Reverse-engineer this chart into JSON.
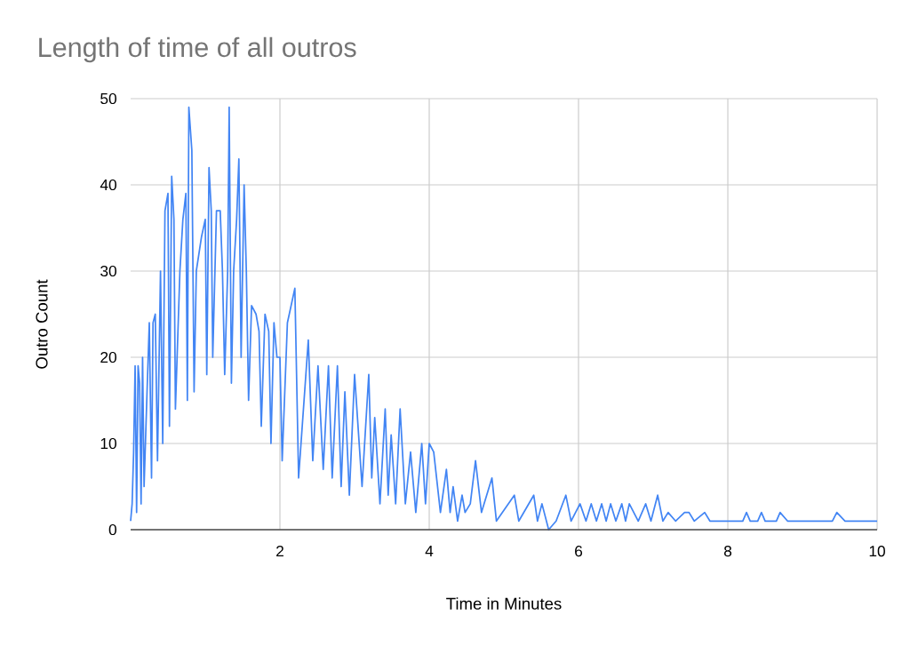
{
  "chart_data": {
    "type": "line",
    "title": "Length of time of all outros",
    "xlabel": "Time in Minutes",
    "ylabel": "Outro Count",
    "x": [
      0,
      0.02,
      0.04,
      0.06,
      0.08,
      0.1,
      0.12,
      0.14,
      0.16,
      0.18,
      0.22,
      0.25,
      0.28,
      0.3,
      0.33,
      0.36,
      0.4,
      0.43,
      0.46,
      0.5,
      0.52,
      0.55,
      0.58,
      0.6,
      0.66,
      0.7,
      0.74,
      0.76,
      0.78,
      0.82,
      0.85,
      0.88,
      0.95,
      1.0,
      1.02,
      1.05,
      1.08,
      1.1,
      1.15,
      1.2,
      1.23,
      1.26,
      1.3,
      1.32,
      1.35,
      1.38,
      1.42,
      1.45,
      1.48,
      1.52,
      1.55,
      1.58,
      1.62,
      1.68,
      1.72,
      1.75,
      1.8,
      1.85,
      1.88,
      1.92,
      1.96,
      2.0,
      2.03,
      2.1,
      2.2,
      2.25,
      2.38,
      2.44,
      2.51,
      2.58,
      2.65,
      2.7,
      2.77,
      2.82,
      2.87,
      2.93,
      3.0,
      3.1,
      3.19,
      3.23,
      3.27,
      3.34,
      3.41,
      3.45,
      3.49,
      3.55,
      3.61,
      3.68,
      3.75,
      3.82,
      3.9,
      3.95,
      4.0,
      4.06,
      4.15,
      4.23,
      4.28,
      4.32,
      4.38,
      4.44,
      4.48,
      4.55,
      4.62,
      4.7,
      4.84,
      4.9,
      5.14,
      5.2,
      5.4,
      5.45,
      5.51,
      5.6,
      5.7,
      5.83,
      5.9,
      6.02,
      6.1,
      6.17,
      6.24,
      6.31,
      6.37,
      6.43,
      6.5,
      6.58,
      6.63,
      6.68,
      6.8,
      6.9,
      6.97,
      7.06,
      7.13,
      7.2,
      7.3,
      7.42,
      7.48,
      7.55,
      7.69,
      7.76,
      8.2,
      8.25,
      8.3,
      8.4,
      8.45,
      8.5,
      8.65,
      8.7,
      8.8,
      9.4,
      9.46,
      9.57,
      10
    ],
    "values": [
      1,
      3,
      9,
      19,
      2,
      19,
      17,
      3,
      20,
      5,
      16,
      24,
      6,
      24,
      25,
      8,
      30,
      10,
      37,
      39,
      12,
      41,
      36,
      14,
      30,
      36,
      39,
      15,
      49,
      44,
      16,
      30,
      34,
      36,
      18,
      42,
      37,
      20,
      37,
      37,
      30,
      18,
      30,
      49,
      17,
      30,
      36,
      43,
      20,
      40,
      30,
      15,
      26,
      25,
      23,
      12,
      25,
      23,
      10,
      24,
      20,
      20,
      8,
      24,
      28,
      6,
      22,
      8,
      19,
      7,
      19,
      6,
      19,
      5,
      16,
      4,
      18,
      5,
      18,
      6,
      13,
      3,
      14,
      4,
      11,
      3,
      14,
      3,
      9,
      2,
      10,
      3,
      10,
      9,
      2,
      7,
      2,
      5,
      1,
      4,
      2,
      3,
      8,
      2,
      6,
      1,
      4,
      1,
      4,
      1,
      3,
      0,
      1,
      4,
      1,
      3,
      1,
      3,
      1,
      3,
      1,
      3,
      1,
      3,
      1,
      3,
      1,
      3,
      1,
      4,
      1,
      2,
      1,
      2,
      2,
      1,
      2,
      1,
      1,
      2,
      1,
      1,
      2,
      1,
      1,
      2,
      1,
      1,
      2,
      1,
      1
    ],
    "color": "#4285f4",
    "xlim": [
      0,
      10
    ],
    "xticks": [
      2,
      4,
      6,
      8,
      10
    ],
    "ylim": [
      0,
      50
    ],
    "yticks": [
      0,
      10,
      20,
      30,
      40,
      50
    ],
    "grid": true
  }
}
